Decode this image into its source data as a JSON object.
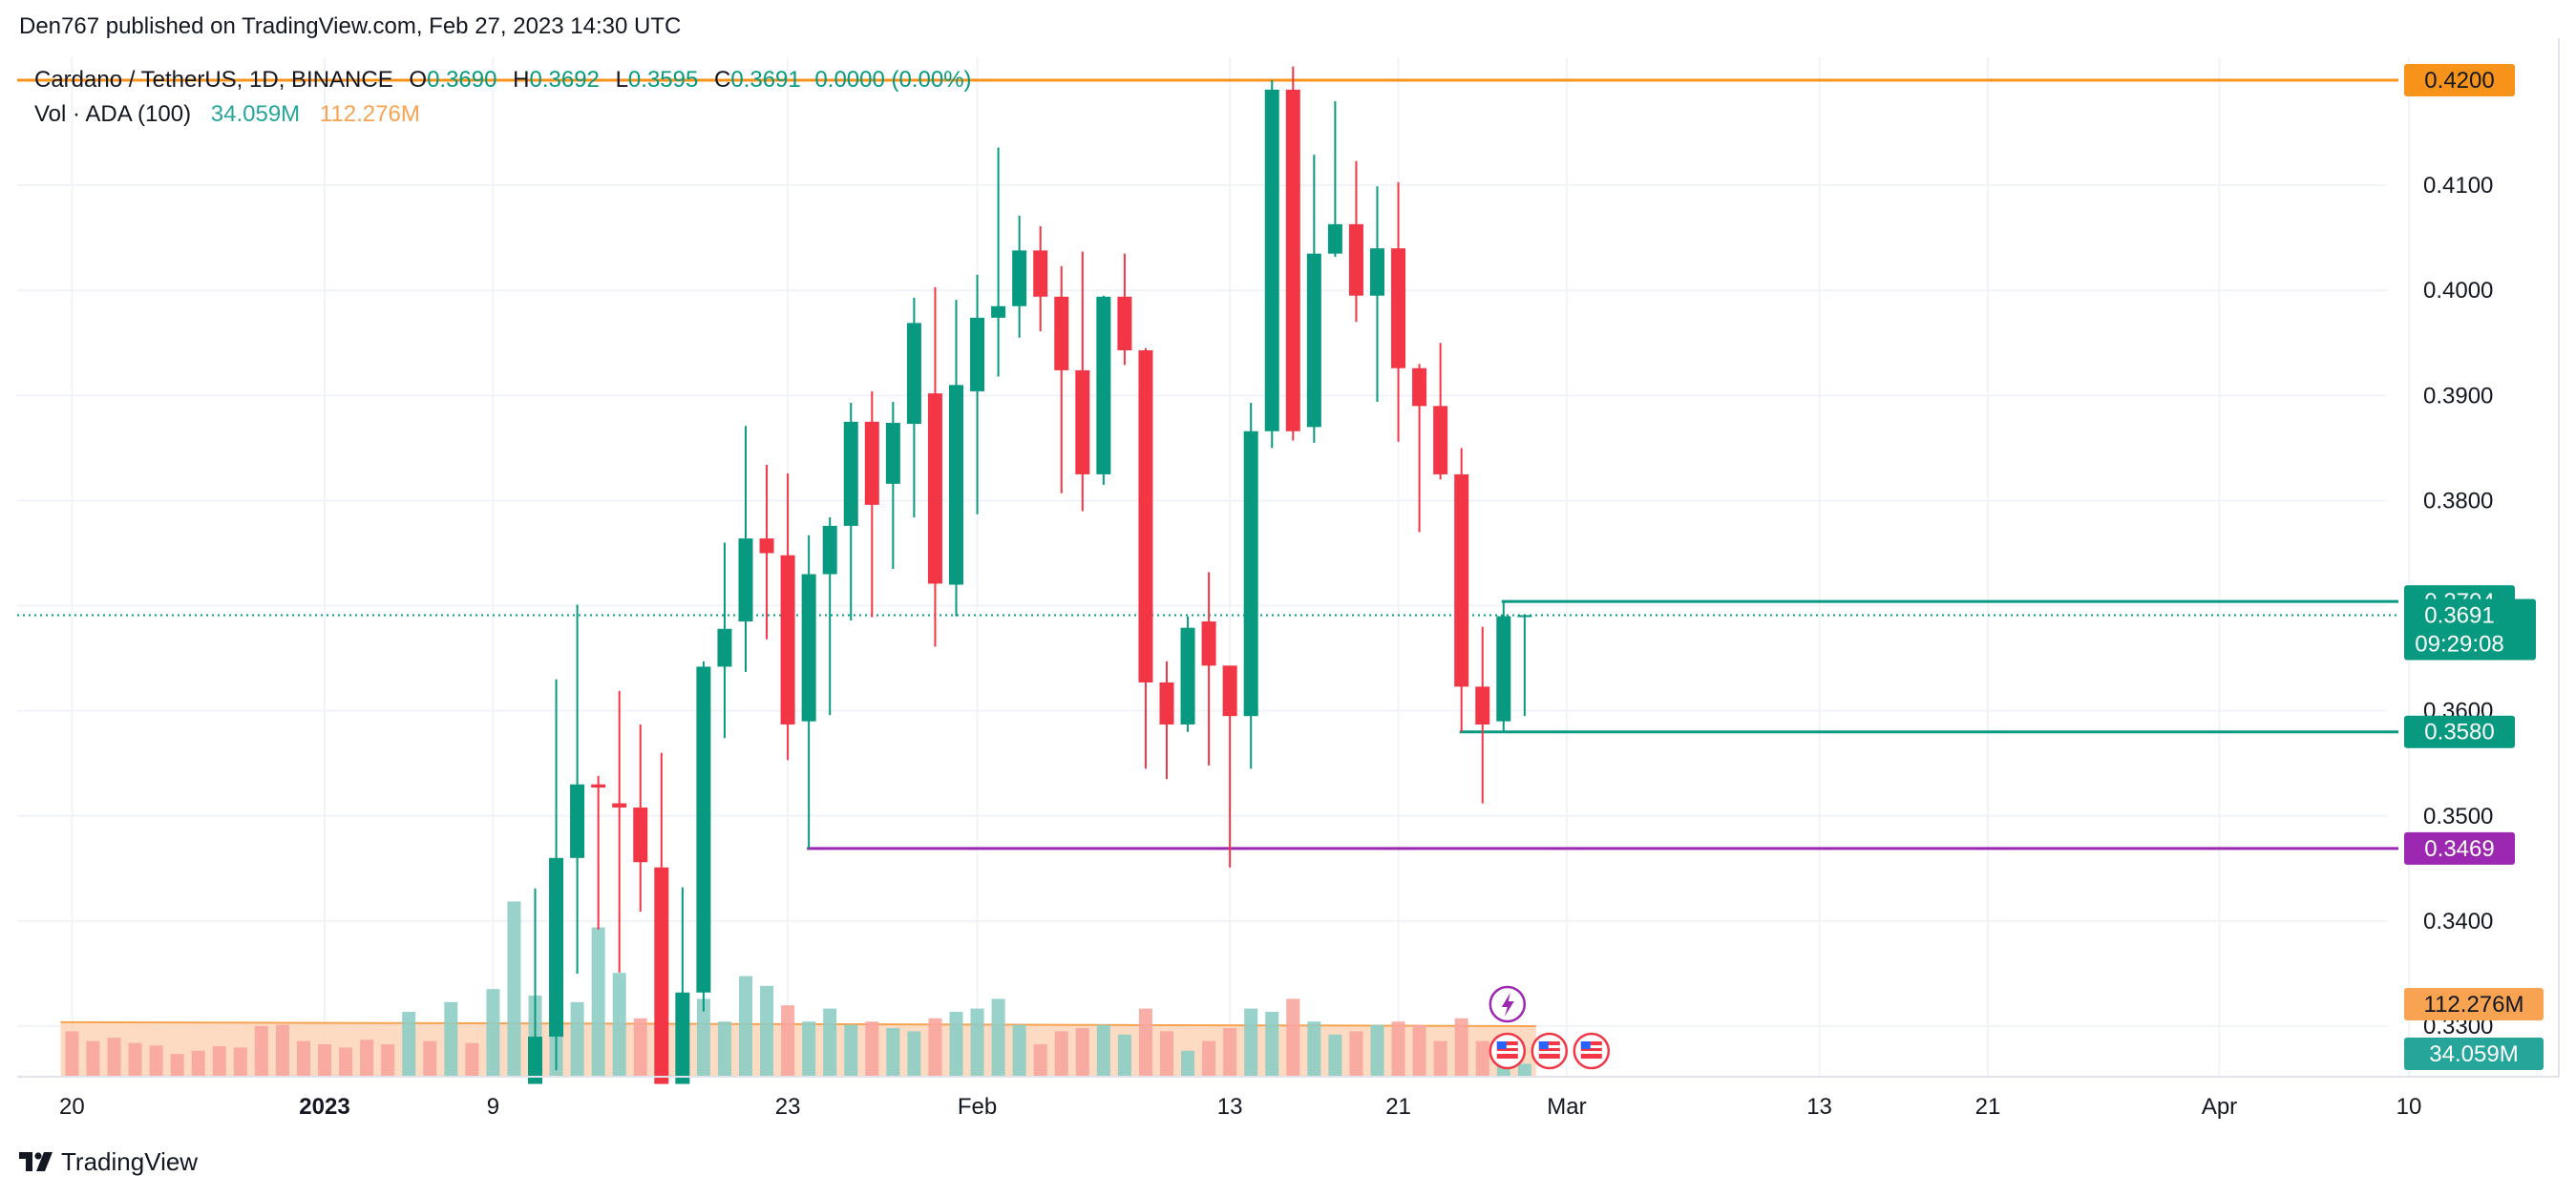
{
  "header": {
    "publisher": "Den767 published on TradingView.com, Feb 27, 2023 14:30 UTC"
  },
  "legend": {
    "title": "Cardano / TetherUS, 1D, BINANCE",
    "o_key": "O",
    "o_val": "0.3690",
    "h_key": "H",
    "h_val": "0.3692",
    "l_key": "L",
    "l_val": "0.3595",
    "c_key": "C",
    "c_val": "0.3691",
    "change": "0.0000 (0.00%)",
    "vol_label": "Vol · ADA (100)",
    "vol_value": "34.059M",
    "vol_ma": "112.276M"
  },
  "footer": {
    "brand": "TradingView"
  },
  "colors": {
    "up": "#089981",
    "down": "#f23645",
    "vol_up": "#8dcdc5",
    "vol_down": "#f8a59e",
    "resistance": "#f7931a",
    "support_purple": "#9c27b0",
    "range_teal": "#089981",
    "vol_ma_fill": "#fbd5b7",
    "grid": "#f0f3fa"
  },
  "chart_data": {
    "type": "candlestick",
    "symbol": "Cardano / TetherUS",
    "timeframe": "1D",
    "exchange": "BINANCE",
    "y_axis": {
      "ticks": [
        "0.3300",
        "0.3400",
        "0.3500",
        "0.3600",
        "0.3800",
        "0.3900",
        "0.4000",
        "0.4100"
      ],
      "tick_values": [
        0.33,
        0.34,
        0.35,
        0.36,
        0.38,
        0.39,
        0.4,
        0.41
      ],
      "range": [
        0.3245,
        0.4215
      ]
    },
    "x_axis": {
      "labels": [
        "20",
        "2023",
        "9",
        "23",
        "Feb",
        "13",
        "21",
        "Mar",
        "13",
        "21",
        "Apr",
        "10"
      ],
      "label_dates": [
        "2022-12-20",
        "2023-01-01",
        "2023-01-09",
        "2023-01-23",
        "2023-02-01",
        "2023-02-13",
        "2023-02-21",
        "2023-03-01",
        "2023-03-13",
        "2023-03-21",
        "2023-04-01",
        "2023-04-10"
      ],
      "bold": [
        "2023"
      ]
    },
    "candles": [
      {
        "date": "2023-01-11",
        "o": 0.3245,
        "h": 0.3431,
        "l": 0.3245,
        "c": 0.329
      },
      {
        "date": "2023-01-12",
        "o": 0.329,
        "h": 0.363,
        "l": 0.3258,
        "c": 0.346
      },
      {
        "date": "2023-01-13",
        "o": 0.346,
        "h": 0.3701,
        "l": 0.335,
        "c": 0.353
      },
      {
        "date": "2023-01-14",
        "o": 0.353,
        "h": 0.3538,
        "l": 0.3392,
        "c": 0.3527
      },
      {
        "date": "2023-01-15",
        "o": 0.3512,
        "h": 0.3619,
        "l": 0.3351,
        "c": 0.3508
      },
      {
        "date": "2023-01-16",
        "o": 0.3508,
        "h": 0.3587,
        "l": 0.3409,
        "c": 0.3456
      },
      {
        "date": "2023-01-17",
        "o": 0.3451,
        "h": 0.356,
        "l": 0.3253,
        "c": 0.3245
      },
      {
        "date": "2023-01-18",
        "o": 0.3245,
        "h": 0.3432,
        "l": 0.3245,
        "c": 0.3332
      },
      {
        "date": "2023-01-19",
        "o": 0.3332,
        "h": 0.3647,
        "l": 0.3314,
        "c": 0.3642
      },
      {
        "date": "2023-01-20",
        "o": 0.3642,
        "h": 0.376,
        "l": 0.3574,
        "c": 0.3678
      },
      {
        "date": "2023-01-21",
        "o": 0.3685,
        "h": 0.3871,
        "l": 0.3637,
        "c": 0.3764
      },
      {
        "date": "2023-01-22",
        "o": 0.3764,
        "h": 0.3834,
        "l": 0.3668,
        "c": 0.375
      },
      {
        "date": "2023-01-23",
        "o": 0.3748,
        "h": 0.3826,
        "l": 0.3553,
        "c": 0.3587
      },
      {
        "date": "2023-01-24",
        "o": 0.359,
        "h": 0.3767,
        "l": 0.3469,
        "c": 0.373
      },
      {
        "date": "2023-01-25",
        "o": 0.373,
        "h": 0.3784,
        "l": 0.3596,
        "c": 0.3776
      },
      {
        "date": "2023-01-26",
        "o": 0.3776,
        "h": 0.3893,
        "l": 0.3686,
        "c": 0.3875
      },
      {
        "date": "2023-01-27",
        "o": 0.3875,
        "h": 0.3904,
        "l": 0.3689,
        "c": 0.3796
      },
      {
        "date": "2023-01-28",
        "o": 0.3816,
        "h": 0.3894,
        "l": 0.3735,
        "c": 0.3874
      },
      {
        "date": "2023-01-29",
        "o": 0.3873,
        "h": 0.3993,
        "l": 0.3784,
        "c": 0.3969
      },
      {
        "date": "2023-01-30",
        "o": 0.3902,
        "h": 0.4003,
        "l": 0.3661,
        "c": 0.3721
      },
      {
        "date": "2023-01-31",
        "o": 0.372,
        "h": 0.3991,
        "l": 0.369,
        "c": 0.391
      },
      {
        "date": "2023-02-01",
        "o": 0.3904,
        "h": 0.4015,
        "l": 0.3787,
        "c": 0.3974
      },
      {
        "date": "2023-02-02",
        "o": 0.3974,
        "h": 0.4136,
        "l": 0.3918,
        "c": 0.3985
      },
      {
        "date": "2023-02-03",
        "o": 0.3985,
        "h": 0.4071,
        "l": 0.3955,
        "c": 0.4038
      },
      {
        "date": "2023-02-04",
        "o": 0.4038,
        "h": 0.4061,
        "l": 0.3961,
        "c": 0.3994
      },
      {
        "date": "2023-02-05",
        "o": 0.3994,
        "h": 0.4023,
        "l": 0.3807,
        "c": 0.3924
      },
      {
        "date": "2023-02-06",
        "o": 0.3924,
        "h": 0.4037,
        "l": 0.379,
        "c": 0.3825
      },
      {
        "date": "2023-02-07",
        "o": 0.3825,
        "h": 0.3995,
        "l": 0.3815,
        "c": 0.3994
      },
      {
        "date": "2023-02-08",
        "o": 0.3994,
        "h": 0.4035,
        "l": 0.3929,
        "c": 0.3943
      },
      {
        "date": "2023-02-09",
        "o": 0.3943,
        "h": 0.3945,
        "l": 0.3545,
        "c": 0.3627
      },
      {
        "date": "2023-02-10",
        "o": 0.3627,
        "h": 0.3647,
        "l": 0.3535,
        "c": 0.3587
      },
      {
        "date": "2023-02-11",
        "o": 0.3587,
        "h": 0.369,
        "l": 0.358,
        "c": 0.3679
      },
      {
        "date": "2023-02-12",
        "o": 0.3685,
        "h": 0.3732,
        "l": 0.3548,
        "c": 0.3643
      },
      {
        "date": "2023-02-13",
        "o": 0.3643,
        "h": 0.3643,
        "l": 0.3451,
        "c": 0.3595
      },
      {
        "date": "2023-02-14",
        "o": 0.3595,
        "h": 0.3893,
        "l": 0.3545,
        "c": 0.3866
      },
      {
        "date": "2023-02-15",
        "o": 0.3866,
        "h": 0.42,
        "l": 0.385,
        "c": 0.4191
      },
      {
        "date": "2023-02-16",
        "o": 0.4191,
        "h": 0.4213,
        "l": 0.3857,
        "c": 0.3866
      },
      {
        "date": "2023-02-17",
        "o": 0.387,
        "h": 0.4129,
        "l": 0.3855,
        "c": 0.4035
      },
      {
        "date": "2023-02-18",
        "o": 0.4035,
        "h": 0.418,
        "l": 0.4032,
        "c": 0.4063
      },
      {
        "date": "2023-02-19",
        "o": 0.4063,
        "h": 0.4123,
        "l": 0.397,
        "c": 0.3995
      },
      {
        "date": "2023-02-20",
        "o": 0.3995,
        "h": 0.4099,
        "l": 0.3894,
        "c": 0.404
      },
      {
        "date": "2023-02-21",
        "o": 0.404,
        "h": 0.4103,
        "l": 0.3856,
        "c": 0.3926
      },
      {
        "date": "2023-02-22",
        "o": 0.3926,
        "h": 0.393,
        "l": 0.377,
        "c": 0.389
      },
      {
        "date": "2023-02-23",
        "o": 0.389,
        "h": 0.395,
        "l": 0.382,
        "c": 0.3825
      },
      {
        "date": "2023-02-24",
        "o": 0.3825,
        "h": 0.385,
        "l": 0.358,
        "c": 0.3623
      },
      {
        "date": "2023-02-25",
        "o": 0.3623,
        "h": 0.368,
        "l": 0.3512,
        "c": 0.3587
      },
      {
        "date": "2023-02-26",
        "o": 0.359,
        "h": 0.3704,
        "l": 0.358,
        "c": 0.369
      },
      {
        "date": "2023-02-27",
        "o": 0.369,
        "h": 0.3692,
        "l": 0.3595,
        "c": 0.3691
      }
    ],
    "volume": {
      "label": "Vol · ADA (100)",
      "last": "34.059M",
      "ma": "112.276M",
      "bars": [
        {
          "date": "2022-12-20",
          "v": 70,
          "up": false
        },
        {
          "date": "2022-12-21",
          "v": 55,
          "up": false
        },
        {
          "date": "2022-12-22",
          "v": 60,
          "up": false
        },
        {
          "date": "2022-12-23",
          "v": 52,
          "up": false
        },
        {
          "date": "2022-12-24",
          "v": 48,
          "up": false
        },
        {
          "date": "2022-12-25",
          "v": 35,
          "up": false
        },
        {
          "date": "2022-12-26",
          "v": 40,
          "up": false
        },
        {
          "date": "2022-12-27",
          "v": 47,
          "up": false
        },
        {
          "date": "2022-12-28",
          "v": 45,
          "up": false
        },
        {
          "date": "2022-12-29",
          "v": 78,
          "up": false
        },
        {
          "date": "2022-12-30",
          "v": 80,
          "up": false
        },
        {
          "date": "2022-12-31",
          "v": 55,
          "up": false
        },
        {
          "date": "2023-01-01",
          "v": 50,
          "up": false
        },
        {
          "date": "2023-01-02",
          "v": 45,
          "up": false
        },
        {
          "date": "2023-01-03",
          "v": 57,
          "up": false
        },
        {
          "date": "2023-01-04",
          "v": 50,
          "up": false
        },
        {
          "date": "2023-01-05",
          "v": 100,
          "up": true
        },
        {
          "date": "2023-01-06",
          "v": 55,
          "up": false
        },
        {
          "date": "2023-01-07",
          "v": 115,
          "up": true
        },
        {
          "date": "2023-01-08",
          "v": 52,
          "up": false
        },
        {
          "date": "2023-01-09",
          "v": 135,
          "up": true
        },
        {
          "date": "2023-01-10",
          "v": 270,
          "up": true
        },
        {
          "date": "2023-01-11",
          "v": 125,
          "up": true
        },
        {
          "date": "2023-01-12",
          "v": 95,
          "up": true
        },
        {
          "date": "2023-01-13",
          "v": 115,
          "up": true
        },
        {
          "date": "2023-01-14",
          "v": 230,
          "up": true
        },
        {
          "date": "2023-01-15",
          "v": 160,
          "up": true
        },
        {
          "date": "2023-01-16",
          "v": 90,
          "up": false
        },
        {
          "date": "2023-01-17",
          "v": 105,
          "up": false
        },
        {
          "date": "2023-01-18",
          "v": 75,
          "up": false
        },
        {
          "date": "2023-01-19",
          "v": 120,
          "up": true
        },
        {
          "date": "2023-01-20",
          "v": 85,
          "up": true
        },
        {
          "date": "2023-01-21",
          "v": 155,
          "up": true
        },
        {
          "date": "2023-01-22",
          "v": 140,
          "up": true
        },
        {
          "date": "2023-01-23",
          "v": 110,
          "up": false
        },
        {
          "date": "2023-01-24",
          "v": 85,
          "up": true
        },
        {
          "date": "2023-01-25",
          "v": 105,
          "up": true
        },
        {
          "date": "2023-01-26",
          "v": 80,
          "up": true
        },
        {
          "date": "2023-01-27",
          "v": 85,
          "up": false
        },
        {
          "date": "2023-01-28",
          "v": 75,
          "up": true
        },
        {
          "date": "2023-01-29",
          "v": 70,
          "up": true
        },
        {
          "date": "2023-01-30",
          "v": 90,
          "up": false
        },
        {
          "date": "2023-01-31",
          "v": 100,
          "up": true
        },
        {
          "date": "2023-02-01",
          "v": 105,
          "up": true
        },
        {
          "date": "2023-02-02",
          "v": 120,
          "up": true
        },
        {
          "date": "2023-02-03",
          "v": 80,
          "up": true
        },
        {
          "date": "2023-02-04",
          "v": 50,
          "up": false
        },
        {
          "date": "2023-02-05",
          "v": 70,
          "up": false
        },
        {
          "date": "2023-02-06",
          "v": 75,
          "up": false
        },
        {
          "date": "2023-02-07",
          "v": 80,
          "up": true
        },
        {
          "date": "2023-02-08",
          "v": 65,
          "up": true
        },
        {
          "date": "2023-02-09",
          "v": 105,
          "up": false
        },
        {
          "date": "2023-02-10",
          "v": 70,
          "up": false
        },
        {
          "date": "2023-02-11",
          "v": 40,
          "up": true
        },
        {
          "date": "2023-02-12",
          "v": 55,
          "up": false
        },
        {
          "date": "2023-02-13",
          "v": 75,
          "up": false
        },
        {
          "date": "2023-02-14",
          "v": 105,
          "up": true
        },
        {
          "date": "2023-02-15",
          "v": 100,
          "up": true
        },
        {
          "date": "2023-02-16",
          "v": 120,
          "up": false
        },
        {
          "date": "2023-02-17",
          "v": 85,
          "up": true
        },
        {
          "date": "2023-02-18",
          "v": 65,
          "up": true
        },
        {
          "date": "2023-02-19",
          "v": 70,
          "up": false
        },
        {
          "date": "2023-02-20",
          "v": 80,
          "up": true
        },
        {
          "date": "2023-02-21",
          "v": 85,
          "up": false
        },
        {
          "date": "2023-02-22",
          "v": 80,
          "up": false
        },
        {
          "date": "2023-02-23",
          "v": 55,
          "up": false
        },
        {
          "date": "2023-02-24",
          "v": 90,
          "up": false
        },
        {
          "date": "2023-02-25",
          "v": 55,
          "up": false
        },
        {
          "date": "2023-02-26",
          "v": 45,
          "up": true
        },
        {
          "date": "2023-02-27",
          "v": 20,
          "up": true
        }
      ]
    },
    "levels": [
      {
        "name": "resistance",
        "value": 0.42,
        "label": "0.4200",
        "color": "#f7931a",
        "start": "2023-01-01"
      },
      {
        "name": "range-top",
        "value": 0.3704,
        "label": "0.3704",
        "color": "#089981",
        "start": "2023-02-26"
      },
      {
        "name": "range-bottom",
        "value": 0.358,
        "label": "0.3580",
        "color": "#089981",
        "start": "2023-02-24"
      },
      {
        "name": "support",
        "value": 0.3469,
        "label": "0.3469",
        "color": "#9c27b0",
        "start": "2023-01-24"
      }
    ],
    "last_price": {
      "value": 0.3691,
      "label": "0.3691",
      "countdown": "09:29:08",
      "color": "#089981"
    },
    "volume_labels": [
      {
        "label": "112.276M",
        "color": "#f7a351"
      },
      {
        "label": "34.059M",
        "color": "#26a69a"
      }
    ],
    "grid": true
  }
}
